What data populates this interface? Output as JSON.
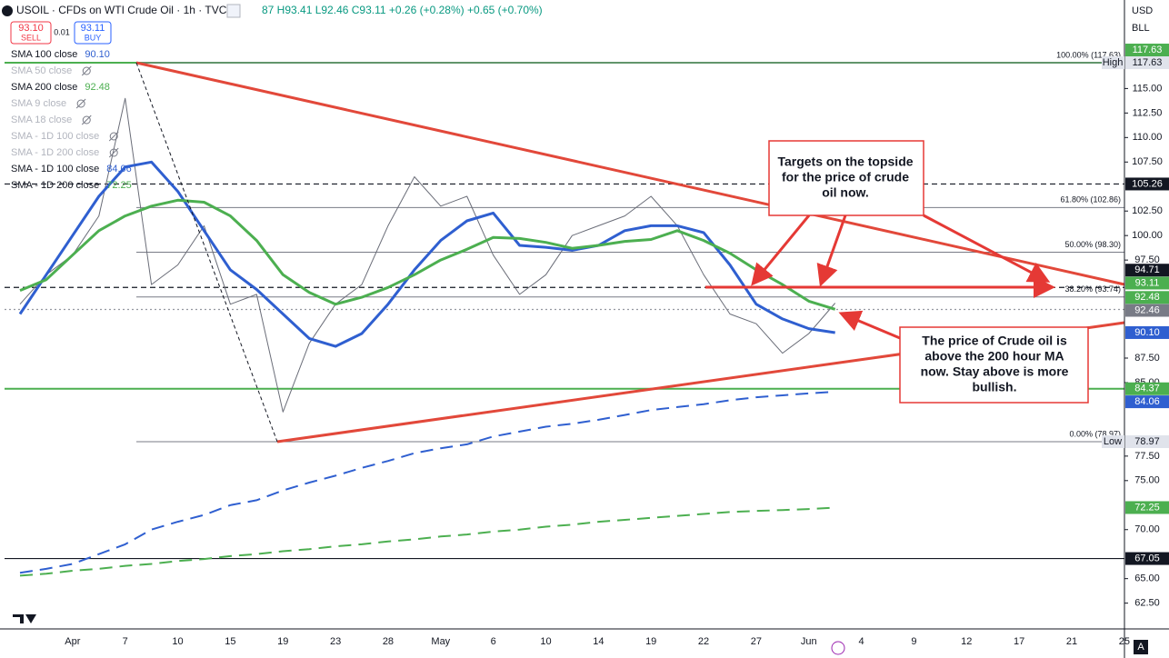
{
  "header": {
    "symbol": "USOIL · CFDs on WTI Crude Oil · 1h · TVC",
    "ohlc": "87 H93.41 L92.46 C93.11 +0.26 (+0.28%) +0.65 (+0.70%)",
    "sell_price": "93.10",
    "sell": "SELL",
    "spread": "0.01",
    "buy_price": "93.11",
    "buy": "BUY"
  },
  "currency": "USD",
  "unit": "BLL",
  "annotations": [
    {
      "lines": [
        "Targets on the topside",
        "for the price of crude",
        "oil now."
      ]
    },
    {
      "lines": [
        "The price of Crude oil is",
        "above the 200 hour MA",
        "now. Stay above is more",
        "bullish."
      ]
    }
  ],
  "chart_data": {
    "type": "line",
    "categories": [
      null,
      null,
      "Apr",
      null,
      "7",
      null,
      "10",
      null,
      "15",
      null,
      "19",
      null,
      "23",
      null,
      "28",
      null,
      "May",
      null,
      "6",
      null,
      "10",
      null,
      "14",
      null,
      "19",
      null,
      "22",
      null,
      "27",
      null,
      "Jun",
      null,
      "4",
      null,
      "9",
      null,
      "12",
      null,
      "17",
      null,
      "21",
      null,
      "25"
    ],
    "ylim": [
      59.87,
      124.03
    ],
    "yticks": [
      {
        "value": 62.5,
        "label": "62.50"
      },
      {
        "value": 65,
        "label": "65.00"
      },
      {
        "value": 70,
        "label": "70.00"
      },
      {
        "value": 75,
        "label": "75.00"
      },
      {
        "value": 77.5,
        "label": "77.50"
      },
      {
        "value": 85,
        "label": "85.00"
      },
      {
        "value": 87.5,
        "label": "87.50"
      },
      {
        "value": 97.5,
        "label": "97.50"
      },
      {
        "value": 100,
        "label": "100.00"
      },
      {
        "value": 102.5,
        "label": "102.50"
      },
      {
        "value": 107.5,
        "label": "107.50"
      },
      {
        "value": 110,
        "label": "110.00"
      },
      {
        "value": 112.5,
        "label": "112.50"
      },
      {
        "value": 115,
        "label": "115.00"
      }
    ],
    "series": [
      {
        "color": "#6a6d78",
        "width": 1,
        "values": [
          93,
          96,
          98,
          102,
          114,
          95,
          97,
          101,
          93,
          94,
          82,
          89,
          93,
          95,
          101,
          106,
          103,
          104,
          98,
          94,
          96,
          100,
          101,
          102,
          104,
          101,
          96,
          92,
          91,
          88,
          90,
          93.11,
          null,
          null,
          null,
          null,
          null,
          null,
          null,
          null,
          null,
          null,
          null
        ]
      },
      {
        "color": "#2f5fd0",
        "width": 3,
        "values": [
          92,
          96,
          100,
          104,
          107,
          107.5,
          104.5,
          100.5,
          96.5,
          94.5,
          92,
          89.5,
          88.7,
          90,
          93,
          96.5,
          99.5,
          101.5,
          102.3,
          99,
          98.8,
          98.5,
          99,
          100.5,
          101,
          101,
          100.3,
          97,
          93,
          91.5,
          90.5,
          90.1,
          null,
          null,
          null,
          null,
          null,
          null,
          null,
          null,
          null,
          null,
          null
        ]
      },
      {
        "color": "#4caf50",
        "width": 3,
        "values": [
          94.4,
          95.5,
          98,
          100.5,
          102,
          103,
          103.6,
          103.4,
          102,
          99.5,
          96,
          94.2,
          93,
          93.7,
          94.7,
          96,
          97.5,
          98.6,
          99.8,
          99.7,
          99.3,
          98.7,
          99,
          99.4,
          99.6,
          100.5,
          99.5,
          98.2,
          96.5,
          95,
          93.3,
          92.48,
          null,
          null,
          null,
          null,
          null,
          null,
          null,
          null,
          null,
          null,
          null
        ]
      },
      {
        "color": "#2f5fd0",
        "width": 2,
        "dash": true,
        "values": [
          65.6,
          66,
          66.5,
          67.5,
          68.5,
          70,
          70.8,
          71.5,
          72.5,
          73,
          74,
          74.8,
          75.5,
          76.3,
          77,
          77.8,
          78.3,
          78.7,
          79.5,
          80,
          80.5,
          80.8,
          81.2,
          81.7,
          82.2,
          82.5,
          82.8,
          83.2,
          83.5,
          83.7,
          83.9,
          84.06,
          null,
          null,
          null,
          null,
          null,
          null,
          null,
          null,
          null,
          null,
          null
        ]
      },
      {
        "color": "#4caf50",
        "width": 2,
        "dash": true,
        "values": [
          65.3,
          65.5,
          65.8,
          66,
          66.3,
          66.5,
          66.8,
          67,
          67.3,
          67.5,
          67.8,
          68,
          68.3,
          68.5,
          68.8,
          69,
          69.3,
          69.5,
          69.8,
          70,
          70.3,
          70.5,
          70.8,
          71,
          71.2,
          71.4,
          71.6,
          71.8,
          71.9,
          72,
          72.1,
          72.25,
          null,
          null,
          null,
          null,
          null,
          null,
          null,
          null,
          null,
          null,
          null
        ]
      }
    ],
    "legend": [
      {
        "name": "SMA 100 close",
        "value": {
          "value": 90.1,
          "label": "90.10"
        },
        "color": "#2f5fd0"
      },
      {
        "name": "SMA 50 close",
        "hidden": true
      },
      {
        "name": "SMA 200 close",
        "value": 92.48,
        "color": "#4caf50"
      },
      {
        "name": "SMA 9 close",
        "hidden": true
      },
      {
        "name": "SMA 18 close",
        "hidden": true
      },
      {
        "name": "SMA - 1D 100 close",
        "hidden": true
      },
      {
        "name": "SMA - 1D 200 close",
        "hidden": true
      },
      {
        "name": "SMA - 1D 100 close",
        "value": 84.06,
        "color": "#2f5fd0"
      },
      {
        "name": "SMA - 1D 200 close",
        "value": 72.25,
        "color": "#4caf50"
      }
    ],
    "fib_levels": [
      {
        "label": "100.00% (117.63)",
        "value": 117.63
      },
      {
        "label": "61.80% (102.86)",
        "value": 102.86
      },
      {
        "label": "50.00% (98.30)",
        "value": 98.3
      },
      {
        "label": "38.20% (93.74)",
        "value": 93.74
      },
      {
        "label": "0.00% (78.97)",
        "value": 78.97
      }
    ],
    "levels": [
      {
        "value": 117.63,
        "color": "#4caf50",
        "style": "solid"
      },
      {
        "value": 105.26,
        "color": "#131722",
        "style": "dashed"
      },
      {
        "value": 94.71,
        "color": "#131722",
        "style": "dashed"
      },
      {
        "value": 92.46,
        "color": "#9598a1",
        "style": "dotted"
      },
      {
        "value": 84.37,
        "color": "#4caf50",
        "style": "solid"
      },
      {
        "value": 67.05,
        "color": "#131722",
        "style": "solid"
      }
    ],
    "price_labels": [
      {
        "price": 117.63,
        "color": "#4caf50"
      },
      {
        "price": 117.63,
        "color": "#e0e3eb",
        "tag": "High"
      },
      {
        "price": 105.26,
        "color": "#131722"
      },
      {
        "price": 94.71,
        "color": "#131722"
      },
      {
        "price": 93.11,
        "color": "#4caf50"
      },
      {
        "price": 92.48,
        "color": "#4caf50"
      },
      {
        "price": 92.46,
        "color": "#787b86"
      },
      {
        "price": {
          "value": 90.1,
          "label": "90.10"
        },
        "color": "#2f5fd0"
      },
      {
        "price": 84.37,
        "color": "#4caf50"
      },
      {
        "price": 84.06,
        "color": "#2f5fd0"
      },
      {
        "price": 78.97,
        "color": "#e0e3eb",
        "tag": "Low"
      },
      {
        "price": 72.25,
        "color": "#4caf50"
      },
      {
        "price": 67.05,
        "color": "#131722"
      }
    ]
  }
}
